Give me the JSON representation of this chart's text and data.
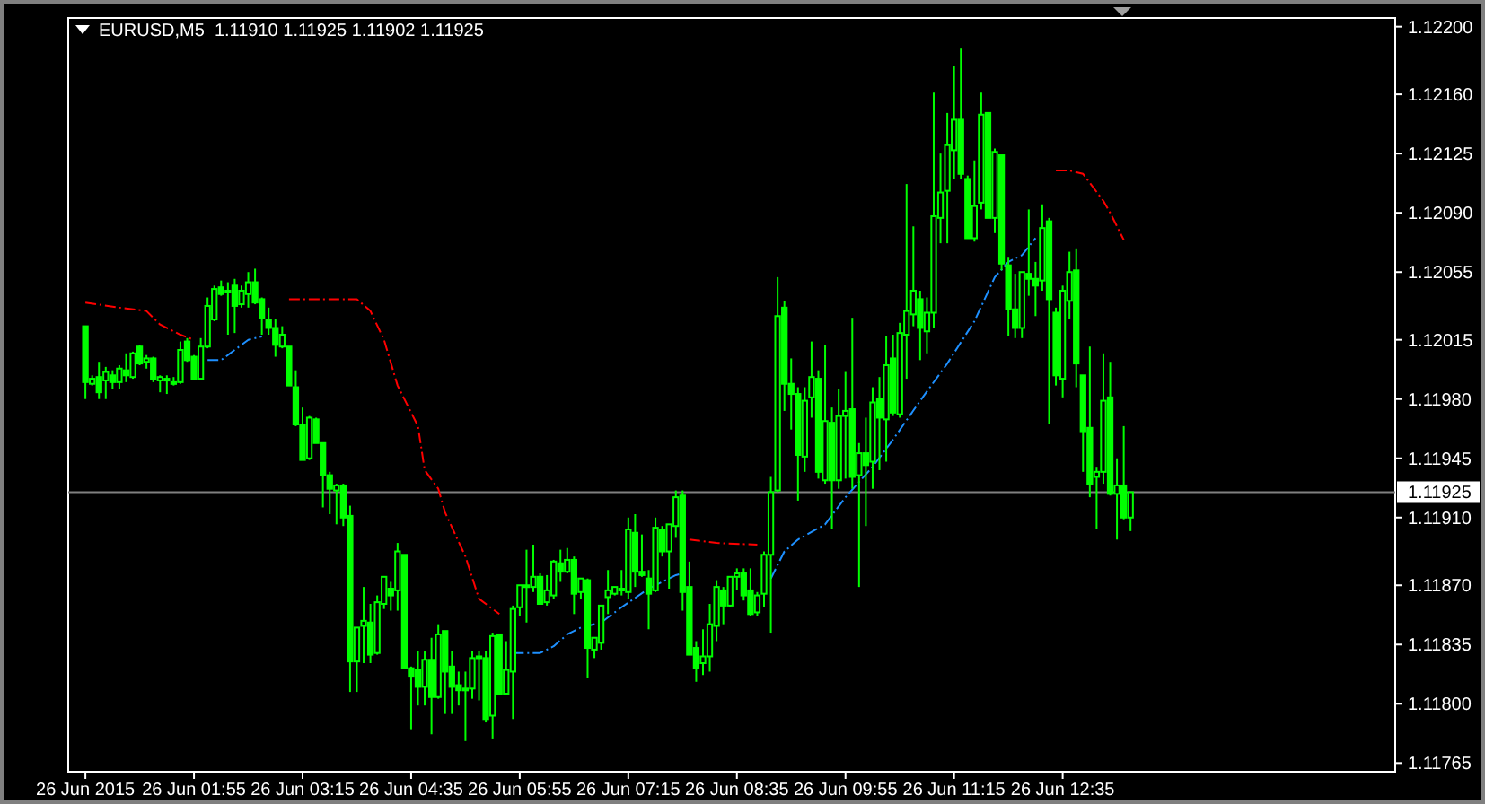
{
  "chart_data": {
    "type": "candlestick",
    "title": "EURUSD,M5  1.11910 1.11925 1.11902 1.11925",
    "color": "#00ff00",
    "x": [
      "2015-06-26T00:35",
      "2015-06-26T00:40",
      "2015-06-26T00:45",
      "2015-06-26T00:50",
      "2015-06-26T00:55",
      "2015-06-26T01:00",
      "2015-06-26T01:05",
      "2015-06-26T01:10",
      "2015-06-26T01:15",
      "2015-06-26T01:20",
      "2015-06-26T01:25",
      "2015-06-26T01:30",
      "2015-06-26T01:35",
      "2015-06-26T01:40",
      "2015-06-26T01:45",
      "2015-06-26T01:50",
      "2015-06-26T01:55",
      "2015-06-26T02:00",
      "2015-06-26T02:05",
      "2015-06-26T02:10",
      "2015-06-26T02:15",
      "2015-06-26T02:20",
      "2015-06-26T02:25",
      "2015-06-26T02:30",
      "2015-06-26T02:35",
      "2015-06-26T02:40",
      "2015-06-26T02:45",
      "2015-06-26T02:50",
      "2015-06-26T02:55",
      "2015-06-26T03:00",
      "2015-06-26T03:05",
      "2015-06-26T03:10",
      "2015-06-26T03:15",
      "2015-06-26T03:20",
      "2015-06-26T03:25",
      "2015-06-26T03:30",
      "2015-06-26T03:35",
      "2015-06-26T03:40",
      "2015-06-26T03:45",
      "2015-06-26T03:50",
      "2015-06-26T03:55",
      "2015-06-26T04:00",
      "2015-06-26T04:05",
      "2015-06-26T04:10",
      "2015-06-26T04:15",
      "2015-06-26T04:20",
      "2015-06-26T04:25",
      "2015-06-26T04:30",
      "2015-06-26T04:35",
      "2015-06-26T04:40",
      "2015-06-26T04:45",
      "2015-06-26T04:50",
      "2015-06-26T04:55",
      "2015-06-26T05:00",
      "2015-06-26T05:05",
      "2015-06-26T05:10",
      "2015-06-26T05:15",
      "2015-06-26T05:20",
      "2015-06-26T05:25",
      "2015-06-26T05:30",
      "2015-06-26T05:35",
      "2015-06-26T05:40",
      "2015-06-26T05:45",
      "2015-06-26T05:50",
      "2015-06-26T05:55",
      "2015-06-26T06:00",
      "2015-06-26T06:05",
      "2015-06-26T06:10",
      "2015-06-26T06:15",
      "2015-06-26T06:20",
      "2015-06-26T06:25",
      "2015-06-26T06:30",
      "2015-06-26T06:35",
      "2015-06-26T06:40",
      "2015-06-26T06:45",
      "2015-06-26T06:50",
      "2015-06-26T06:55",
      "2015-06-26T07:00",
      "2015-06-26T07:05",
      "2015-06-26T07:10",
      "2015-06-26T07:15",
      "2015-06-26T07:20",
      "2015-06-26T07:25",
      "2015-06-26T07:30",
      "2015-06-26T07:35",
      "2015-06-26T07:40",
      "2015-06-26T07:45",
      "2015-06-26T07:50",
      "2015-06-26T07:55",
      "2015-06-26T08:00",
      "2015-06-26T08:05",
      "2015-06-26T08:10",
      "2015-06-26T08:15",
      "2015-06-26T08:20",
      "2015-06-26T08:25",
      "2015-06-26T08:30",
      "2015-06-26T08:35",
      "2015-06-26T08:40",
      "2015-06-26T08:45",
      "2015-06-26T08:50",
      "2015-06-26T08:55",
      "2015-06-26T09:00",
      "2015-06-26T09:05",
      "2015-06-26T09:10",
      "2015-06-26T09:15",
      "2015-06-26T09:20",
      "2015-06-26T09:25",
      "2015-06-26T09:30",
      "2015-06-26T09:35",
      "2015-06-26T09:40",
      "2015-06-26T09:45",
      "2015-06-26T09:50",
      "2015-06-26T09:55",
      "2015-06-26T10:00",
      "2015-06-26T10:05",
      "2015-06-26T10:10",
      "2015-06-26T10:15",
      "2015-06-26T10:20",
      "2015-06-26T10:25",
      "2015-06-26T10:30",
      "2015-06-26T10:35",
      "2015-06-26T10:40",
      "2015-06-26T10:45",
      "2015-06-26T10:50",
      "2015-06-26T10:55",
      "2015-06-26T11:00",
      "2015-06-26T11:05",
      "2015-06-26T11:10",
      "2015-06-26T11:15",
      "2015-06-26T11:20",
      "2015-06-26T11:25",
      "2015-06-26T11:30",
      "2015-06-26T11:35",
      "2015-06-26T11:40",
      "2015-06-26T11:45",
      "2015-06-26T11:50",
      "2015-06-26T11:55",
      "2015-06-26T12:00",
      "2015-06-26T12:05",
      "2015-06-26T12:10",
      "2015-06-26T12:15",
      "2015-06-26T12:20",
      "2015-06-26T12:25",
      "2015-06-26T12:30",
      "2015-06-26T12:35",
      "2015-06-26T12:40",
      "2015-06-26T12:45",
      "2015-06-26T12:50",
      "2015-06-26T12:55",
      "2015-06-26T13:00",
      "2015-06-26T13:05",
      "2015-06-26T13:10",
      "2015-06-26T13:15",
      "2015-06-26T13:20",
      "2015-06-26T13:25"
    ],
    "ohlc": [
      [
        1.12023,
        1.12023,
        1.1198,
        1.1199
      ],
      [
        1.11989,
        1.11994,
        1.11988,
        1.11992
      ],
      [
        1.11993,
        1.12002,
        1.1198,
        1.11984
      ],
      [
        1.11991,
        1.11999,
        1.1198,
        1.11996
      ],
      [
        1.11994,
        1.11997,
        1.11986,
        1.1199
      ],
      [
        1.1199,
        1.12,
        1.11986,
        1.11998
      ],
      [
        1.11997,
        1.12007,
        1.1199,
        1.11994
      ],
      [
        1.11993,
        1.12008,
        1.11992,
        1.12007
      ],
      [
        1.12011,
        1.12012,
        1.12,
        1.12001
      ],
      [
        1.12002,
        1.12006,
        1.11998,
        1.12004
      ],
      [
        1.12004,
        1.12005,
        1.1199,
        1.11992
      ],
      [
        1.11991,
        1.11994,
        1.11984,
        1.11993
      ],
      [
        1.11992,
        1.11994,
        1.11983,
        1.11991
      ],
      [
        1.1199,
        1.11993,
        1.11988,
        1.1199
      ],
      [
        1.1199,
        1.12014,
        1.11989,
        1.12009
      ],
      [
        1.12014,
        1.12016,
        1.12002,
        1.12003
      ],
      [
        1.12005,
        1.12006,
        1.11991,
        1.11992
      ],
      [
        1.11992,
        1.12016,
        1.11991,
        1.12011
      ],
      [
        1.12011,
        1.1204,
        1.1201,
        1.12035
      ],
      [
        1.12027,
        1.12047,
        1.12026,
        1.12045
      ],
      [
        1.12046,
        1.1205,
        1.12041,
        1.12042
      ],
      [
        1.12043,
        1.12049,
        1.12018,
        1.12044
      ],
      [
        1.12047,
        1.12051,
        1.12019,
        1.12035
      ],
      [
        1.12036,
        1.12047,
        1.12034,
        1.12044
      ],
      [
        1.12042,
        1.12055,
        1.12034,
        1.12049
      ],
      [
        1.12049,
        1.12057,
        1.12036,
        1.12037
      ],
      [
        1.12039,
        1.1204,
        1.12018,
        1.12028
      ],
      [
        1.12027,
        1.12034,
        1.12018,
        1.12022
      ],
      [
        1.12022,
        1.12027,
        1.12005,
        1.12012
      ],
      [
        1.12011,
        1.12023,
        1.1201,
        1.12018
      ],
      [
        1.12011,
        1.12011,
        1.11988,
        1.11988
      ],
      [
        1.11987,
        1.11997,
        1.11964,
        1.11965
      ],
      [
        1.11965,
        1.11975,
        1.11944,
        1.11944
      ],
      [
        1.11945,
        1.1197,
        1.11944,
        1.11969
      ],
      [
        1.11968,
        1.11969,
        1.11954,
        1.11954
      ],
      [
        1.11954,
        1.11954,
        1.11916,
        1.11935
      ],
      [
        1.11935,
        1.11937,
        1.11912,
        1.11927
      ],
      [
        1.11926,
        1.1193,
        1.11906,
        1.11929
      ],
      [
        1.11929,
        1.1193,
        1.11905,
        1.1191
      ],
      [
        1.11911,
        1.11917,
        1.11807,
        1.11825
      ],
      [
        1.11825,
        1.11845,
        1.11807,
        1.11845
      ],
      [
        1.11846,
        1.11869,
        1.11824,
        1.11849
      ],
      [
        1.11848,
        1.11859,
        1.11824,
        1.11829
      ],
      [
        1.1183,
        1.11864,
        1.11829,
        1.1186
      ],
      [
        1.11859,
        1.11875,
        1.11856,
        1.11875
      ],
      [
        1.11868,
        1.11872,
        1.11855,
        1.11864
      ],
      [
        1.11867,
        1.11895,
        1.11855,
        1.1189
      ],
      [
        1.11888,
        1.11888,
        1.11821,
        1.11821
      ],
      [
        1.11821,
        1.11822,
        1.11785,
        1.11816
      ],
      [
        1.1182,
        1.11831,
        1.11799,
        1.1181
      ],
      [
        1.1181,
        1.11831,
        1.11799,
        1.11826
      ],
      [
        1.11826,
        1.11839,
        1.11782,
        1.11804
      ],
      [
        1.11804,
        1.11847,
        1.11803,
        1.11841
      ],
      [
        1.11843,
        1.11843,
        1.11794,
        1.11819
      ],
      [
        1.11822,
        1.11831,
        1.11794,
        1.1181
      ],
      [
        1.11811,
        1.11819,
        1.11799,
        1.11808
      ],
      [
        1.11808,
        1.11819,
        1.11778,
        1.11809
      ],
      [
        1.11809,
        1.11831,
        1.11803,
        1.11827
      ],
      [
        1.11827,
        1.11831,
        1.11802,
        1.11828
      ],
      [
        1.11827,
        1.11831,
        1.11789,
        1.11791
      ],
      [
        1.11793,
        1.11842,
        1.11779,
        1.1184
      ],
      [
        1.11841,
        1.11841,
        1.11805,
        1.11806
      ],
      [
        1.11806,
        1.11837,
        1.11805,
        1.1182
      ],
      [
        1.11819,
        1.11858,
        1.11791,
        1.11856
      ],
      [
        1.11857,
        1.1187,
        1.11852,
        1.1187
      ],
      [
        1.1187,
        1.11891,
        1.11848,
        1.1187
      ],
      [
        1.11869,
        1.11894,
        1.11866,
        1.11875
      ],
      [
        1.11875,
        1.11877,
        1.11859,
        1.11859
      ],
      [
        1.1186,
        1.11876,
        1.11858,
        1.11867
      ],
      [
        1.11864,
        1.11885,
        1.11862,
        1.11884
      ],
      [
        1.11883,
        1.11891,
        1.11872,
        1.11878
      ],
      [
        1.11878,
        1.11892,
        1.11877,
        1.11885
      ],
      [
        1.11885,
        1.11887,
        1.11853,
        1.11865
      ],
      [
        1.11866,
        1.11874,
        1.11862,
        1.11874
      ],
      [
        1.11873,
        1.11874,
        1.11815,
        1.11833
      ],
      [
        1.11832,
        1.11839,
        1.11827,
        1.11839
      ],
      [
        1.11836,
        1.11858,
        1.11832,
        1.11858
      ],
      [
        1.11863,
        1.11879,
        1.11853,
        1.11867
      ],
      [
        1.11865,
        1.11869,
        1.11864,
        1.11869
      ],
      [
        1.11868,
        1.11879,
        1.11864,
        1.11868
      ],
      [
        1.11866,
        1.1191,
        1.11862,
        1.11903
      ],
      [
        1.11901,
        1.11912,
        1.11869,
        1.11878
      ],
      [
        1.11878,
        1.119,
        1.11875,
        1.11876
      ],
      [
        1.11874,
        1.11879,
        1.11844,
        1.11865
      ],
      [
        1.11867,
        1.1191,
        1.11866,
        1.11904
      ],
      [
        1.11903,
        1.11905,
        1.11887,
        1.1189
      ],
      [
        1.1189,
        1.11906,
        1.11868,
        1.11906
      ],
      [
        1.11905,
        1.11926,
        1.11898,
        1.11922
      ],
      [
        1.11923,
        1.11926,
        1.11855,
        1.11866
      ],
      [
        1.11869,
        1.11884,
        1.11829,
        1.11829
      ],
      [
        1.11833,
        1.11837,
        1.11813,
        1.11821
      ],
      [
        1.11824,
        1.11844,
        1.11817,
        1.11828
      ],
      [
        1.11828,
        1.11859,
        1.11819,
        1.11847
      ],
      [
        1.11846,
        1.11873,
        1.11837,
        1.11869
      ],
      [
        1.11867,
        1.11869,
        1.11847,
        1.11858
      ],
      [
        1.11858,
        1.11875,
        1.11857,
        1.11875
      ],
      [
        1.11875,
        1.1188,
        1.11867,
        1.11877
      ],
      [
        1.11877,
        1.1188,
        1.11861,
        1.11864
      ],
      [
        1.11867,
        1.1188,
        1.11852,
        1.11853
      ],
      [
        1.11854,
        1.11866,
        1.11852,
        1.11864
      ],
      [
        1.11865,
        1.1189,
        1.11857,
        1.11888
      ],
      [
        1.11888,
        1.11934,
        1.11842,
        1.11925
      ],
      [
        1.11926,
        1.12052,
        1.11925,
        1.12029
      ],
      [
        1.12034,
        1.12038,
        1.11973,
        1.11989
      ],
      [
        1.11989,
        1.12004,
        1.11962,
        1.11983
      ],
      [
        1.11983,
        1.11987,
        1.1192,
        1.11947
      ],
      [
        1.11946,
        1.11987,
        1.11937,
        1.11979
      ],
      [
        1.11981,
        1.12014,
        1.11969,
        1.11993
      ],
      [
        1.11992,
        1.11997,
        1.11933,
        1.11937
      ],
      [
        1.11932,
        1.12012,
        1.1193,
        1.11967
      ],
      [
        1.11966,
        1.11975,
        1.11903,
        1.11932
      ],
      [
        1.11932,
        1.11986,
        1.11927,
        1.1197
      ],
      [
        1.1197,
        1.11996,
        1.11933,
        1.11973
      ],
      [
        1.11974,
        1.12028,
        1.11927,
        1.11934
      ],
      [
        1.11935,
        1.11954,
        1.11869,
        1.11948
      ],
      [
        1.11948,
        1.11969,
        1.11905,
        1.11941
      ],
      [
        1.11943,
        1.11987,
        1.11927,
        1.11978
      ],
      [
        1.1198,
        1.11993,
        1.11938,
        1.11969
      ],
      [
        1.11968,
        1.12017,
        1.11943,
        1.12
      ],
      [
        1.12004,
        1.12018,
        1.1197,
        1.11972
      ],
      [
        1.11971,
        1.12025,
        1.11969,
        1.12019
      ],
      [
        1.12018,
        1.12107,
        1.11992,
        1.12032
      ],
      [
        1.1203,
        1.12082,
        1.12023,
        1.12044
      ],
      [
        1.12039,
        1.12044,
        1.12003,
        1.12022
      ],
      [
        1.1202,
        1.1204,
        1.12007,
        1.12031
      ],
      [
        1.12031,
        1.12161,
        1.12022,
        1.12088
      ],
      [
        1.12087,
        1.12125,
        1.12072,
        1.12102
      ],
      [
        1.12103,
        1.12149,
        1.12072,
        1.1213
      ],
      [
        1.12127,
        1.12177,
        1.1211,
        1.12145
      ],
      [
        1.12145,
        1.12187,
        1.1211,
        1.12113
      ],
      [
        1.1211,
        1.12112,
        1.12075,
        1.12075
      ],
      [
        1.12075,
        1.12121,
        1.12073,
        1.12094
      ],
      [
        1.12096,
        1.12161,
        1.12092,
        1.12148
      ],
      [
        1.12149,
        1.12149,
        1.12087,
        1.12087
      ],
      [
        1.12087,
        1.12128,
        1.12078,
        1.12126
      ],
      [
        1.12124,
        1.12124,
        1.12056,
        1.1206
      ],
      [
        1.12059,
        1.12064,
        1.12017,
        1.12033
      ],
      [
        1.12033,
        1.12054,
        1.12016,
        1.12022
      ],
      [
        1.12022,
        1.12055,
        1.12016,
        1.12055
      ],
      [
        1.12054,
        1.12092,
        1.12041,
        1.12051
      ],
      [
        1.12051,
        1.12061,
        1.12029,
        1.12047
      ],
      [
        1.1205,
        1.12095,
        1.12044,
        1.12081
      ],
      [
        1.12085,
        1.12087,
        1.11965,
        1.12039
      ],
      [
        1.12031,
        1.12034,
        1.11988,
        1.11994
      ],
      [
        1.11992,
        1.12047,
        1.11981,
        1.12044
      ],
      [
        1.12038,
        1.12067,
        1.12027,
        1.12055
      ],
      [
        1.12056,
        1.12069,
        1.11987,
        1.12001
      ],
      [
        1.11994,
        1.11994,
        1.11937,
        1.11961
      ],
      [
        1.11963,
        1.12011,
        1.11922,
        1.1193
      ],
      [
        1.11934,
        1.1194,
        1.11903,
        1.11937
      ],
      [
        1.11937,
        1.12007,
        1.1193,
        1.11979
      ],
      [
        1.11981,
        1.12002,
        1.11923,
        1.11924
      ],
      [
        1.11924,
        1.11945,
        1.11897,
        1.11929
      ],
      [
        1.11929,
        1.11964,
        1.11909,
        1.1191
      ],
      [
        1.1191,
        1.11925,
        1.11902,
        1.11925
      ]
    ],
    "series": [
      {
        "type": "line",
        "color": "#ff0000",
        "line_style": "dashed",
        "x": [
          "2015-06-26T00:35",
          "2015-06-26T01:00",
          "2015-06-26T01:20",
          "2015-06-26T01:30",
          "2015-06-26T01:45",
          "2015-06-26T01:55",
          "2015-06-26T02:30",
          "2015-06-26T03:05",
          "2015-06-26T03:55",
          "2015-06-26T04:05",
          "2015-06-26T04:15",
          "2015-06-26T04:25",
          "2015-06-26T04:40",
          "2015-06-26T04:45",
          "2015-06-26T04:55",
          "2015-06-26T05:00",
          "2015-06-26T05:15",
          "2015-06-26T05:25",
          "2015-06-26T05:35",
          "2015-06-26T05:40",
          "2015-06-26T07:00",
          "2015-06-26T08:00",
          "2015-06-26T08:20",
          "2015-06-26T08:50",
          "2015-06-26T11:00",
          "2015-06-26T12:30",
          "2015-06-26T12:40",
          "2015-06-26T12:50",
          "2015-06-26T13:05",
          "2015-06-26T13:10",
          "2015-06-26T13:20"
        ],
        "values": [
          1.12037,
          1.12034,
          1.12032,
          1.12024,
          1.12018,
          1.12015,
          null,
          1.12039,
          1.12039,
          1.12032,
          1.12015,
          1.11988,
          1.11964,
          1.11938,
          1.11927,
          1.11913,
          1.11887,
          1.11862,
          1.11856,
          1.11853,
          null,
          1.11897,
          1.11895,
          1.11894,
          null,
          1.12115,
          1.12115,
          1.12113,
          1.12097,
          1.1209,
          1.12074
        ]
      },
      {
        "type": "line",
        "color": "#1e90ff",
        "line_style": "dashed",
        "x": [
          "2015-06-26T02:05",
          "2015-06-26T02:15",
          "2015-06-26T02:25",
          "2015-06-26T02:35",
          "2015-06-26T02:45",
          "2015-06-26T04:30",
          "2015-06-26T05:50",
          "2015-06-26T06:10",
          "2015-06-26T06:20",
          "2015-06-26T06:30",
          "2015-06-26T06:40",
          "2015-06-26T06:55",
          "2015-06-26T07:10",
          "2015-06-26T07:30",
          "2015-06-26T07:50",
          "2015-06-26T07:55",
          "2015-06-26T08:30",
          "2015-06-26T09:00",
          "2015-06-26T09:10",
          "2015-06-26T09:20",
          "2015-06-26T09:40",
          "2015-06-26T09:55",
          "2015-06-26T10:15",
          "2015-06-26T10:30",
          "2015-06-26T10:50",
          "2015-06-26T11:10",
          "2015-06-26T11:30",
          "2015-06-26T11:45",
          "2015-06-26T11:55",
          "2015-06-26T12:05",
          "2015-06-26T12:15"
        ],
        "values": [
          1.12003,
          1.12003,
          1.12009,
          1.12015,
          1.12017,
          null,
          1.1183,
          1.1183,
          1.11834,
          1.11841,
          1.11845,
          1.11848,
          1.11857,
          1.11868,
          1.11876,
          1.11877,
          null,
          1.11874,
          1.1189,
          1.11897,
          1.11906,
          1.11922,
          1.1194,
          1.11956,
          1.11979,
          1.12001,
          1.12026,
          1.12052,
          1.12061,
          1.12065,
          1.12075
        ]
      }
    ],
    "xlim": [
      "2015-06-26T00:25",
      "2015-06-26T16:40"
    ],
    "xticks": [
      {
        "value": "2015-06-26T00:35",
        "label": "26 Jun 2015"
      },
      {
        "value": "2015-06-26T01:55",
        "label": "26 Jun 01:55"
      },
      {
        "value": "2015-06-26T03:15",
        "label": "26 Jun 03:15"
      },
      {
        "value": "2015-06-26T04:35",
        "label": "26 Jun 04:35"
      },
      {
        "value": "2015-06-26T05:55",
        "label": "26 Jun 05:55"
      },
      {
        "value": "2015-06-26T07:15",
        "label": "26 Jun 07:15"
      },
      {
        "value": "2015-06-26T08:35",
        "label": "26 Jun 08:35"
      },
      {
        "value": "2015-06-26T09:55",
        "label": "26 Jun 09:55"
      },
      {
        "value": "2015-06-26T11:15",
        "label": "26 Jun 11:15"
      },
      {
        "value": "2015-06-26T12:35",
        "label": "26 Jun 12:35"
      }
    ],
    "ylim": [
      1.11762,
      1.12203
    ],
    "yticks": [
      {
        "value": 1.122,
        "label": "1.12200"
      },
      {
        "value": 1.1216,
        "label": "1.12160"
      },
      {
        "value": 1.12125,
        "label": "1.12125"
      },
      {
        "value": 1.1209,
        "label": "1.12090"
      },
      {
        "value": 1.12055,
        "label": "1.12055"
      },
      {
        "value": 1.12015,
        "label": "1.12015"
      },
      {
        "value": 1.1198,
        "label": "1.11980"
      },
      {
        "value": 1.11945,
        "label": "1.11945"
      },
      {
        "value": 1.1191,
        "label": "1.11910"
      },
      {
        "value": 1.1187,
        "label": "1.11870"
      },
      {
        "value": 1.11835,
        "label": "1.11835"
      },
      {
        "value": 1.118,
        "label": "1.11800"
      },
      {
        "value": 1.11765,
        "label": "1.11765"
      }
    ],
    "ref_lines": [
      {
        "axis": "y",
        "value": 1.11925,
        "label": "1.11925",
        "color": "#808080"
      }
    ]
  }
}
